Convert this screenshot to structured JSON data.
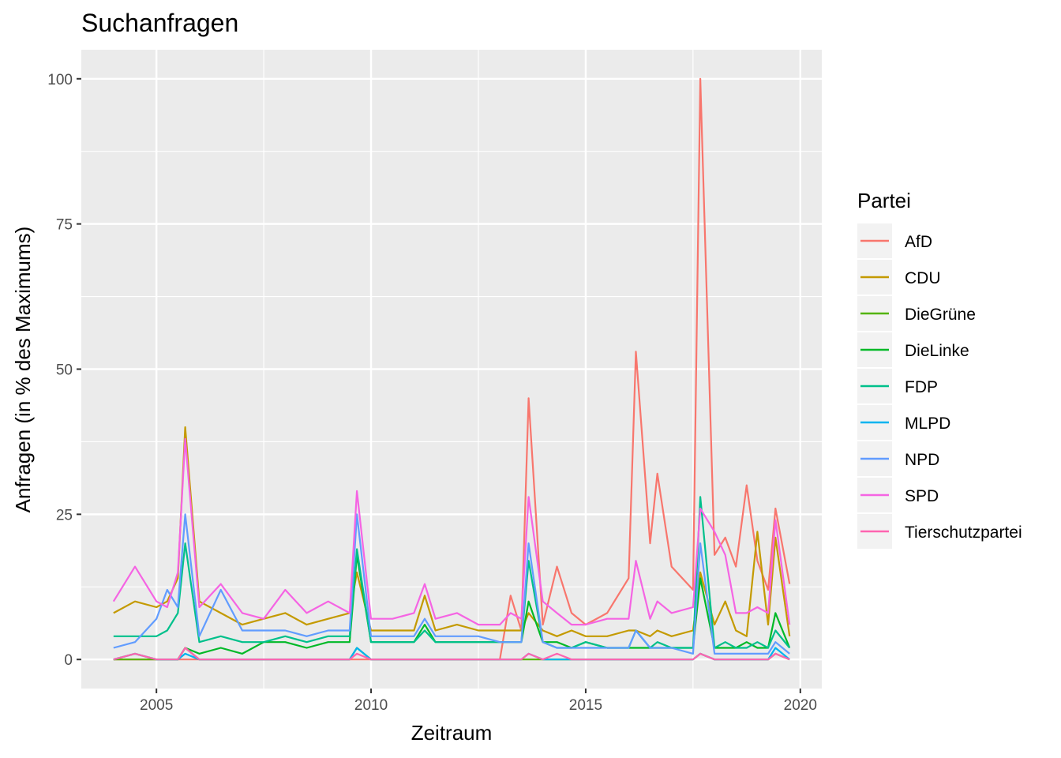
{
  "chart_data": {
    "type": "line",
    "title": "Suchanfragen",
    "xlabel": "Zeitraum",
    "ylabel": "Anfragen (in % des Maximums)",
    "xlim": [
      2003.25,
      2020.5
    ],
    "ylim": [
      -5,
      105
    ],
    "x_ticks": [
      2005,
      2010,
      2015,
      2020
    ],
    "x_tick_labels": [
      "2005",
      "2010",
      "2015",
      "2020"
    ],
    "y_ticks": [
      0,
      25,
      50,
      75,
      100
    ],
    "y_tick_labels": [
      "0",
      "25",
      "50",
      "75",
      "100"
    ],
    "grid": true,
    "legend": {
      "title": "Partei",
      "position": "right"
    },
    "x": [
      2004.0,
      2004.5,
      2005.0,
      2005.25,
      2005.5,
      2005.67,
      2006.0,
      2006.5,
      2007.0,
      2007.5,
      2008.0,
      2008.5,
      2009.0,
      2009.5,
      2009.67,
      2010.0,
      2010.5,
      2011.0,
      2011.25,
      2011.5,
      2012.0,
      2012.5,
      2013.0,
      2013.25,
      2013.5,
      2013.67,
      2014.0,
      2014.33,
      2014.67,
      2015.0,
      2015.5,
      2016.0,
      2016.17,
      2016.5,
      2016.67,
      2017.0,
      2017.5,
      2017.67,
      2018.0,
      2018.25,
      2018.5,
      2018.75,
      2019.0,
      2019.25,
      2019.42,
      2019.75
    ],
    "series": [
      {
        "name": "AfD",
        "color": "#F8766D",
        "values": [
          0,
          0,
          0,
          0,
          0,
          0,
          0,
          0,
          0,
          0,
          0,
          0,
          0,
          0,
          0,
          0,
          0,
          0,
          0,
          0,
          0,
          0,
          0,
          11,
          5,
          45,
          6,
          16,
          8,
          6,
          8,
          14,
          53,
          20,
          32,
          16,
          12,
          100,
          18,
          21,
          16,
          30,
          17,
          12,
          26,
          13
        ]
      },
      {
        "name": "CDU",
        "color": "#C49A00",
        "values": [
          8,
          10,
          9,
          10,
          14,
          40,
          10,
          8,
          6,
          7,
          8,
          6,
          7,
          8,
          15,
          5,
          5,
          5,
          11,
          5,
          6,
          5,
          5,
          5,
          5,
          8,
          5,
          4,
          5,
          4,
          4,
          5,
          5,
          4,
          5,
          4,
          5,
          15,
          6,
          10,
          5,
          4,
          22,
          6,
          21,
          4
        ]
      },
      {
        "name": "DieGrüne",
        "color": "#53B400",
        "values": [
          0,
          0,
          0,
          0,
          0,
          2,
          0,
          0,
          0,
          0,
          0,
          0,
          0,
          0,
          2,
          0,
          0,
          0,
          0,
          0,
          0,
          0,
          0,
          0,
          0,
          0,
          0,
          0,
          0,
          0,
          0,
          0,
          0,
          0,
          0,
          0,
          0,
          1,
          0,
          0,
          0,
          0,
          0,
          0,
          1,
          0
        ]
      },
      {
        "name": "DieLinke",
        "color": "#00B927",
        "values": [
          0,
          1,
          0,
          0,
          0,
          2,
          1,
          2,
          1,
          3,
          3,
          2,
          3,
          3,
          18,
          3,
          3,
          3,
          6,
          3,
          3,
          3,
          3,
          3,
          3,
          10,
          3,
          3,
          2,
          3,
          2,
          2,
          2,
          2,
          2,
          2,
          2,
          14,
          2,
          2,
          2,
          3,
          2,
          2,
          8,
          2
        ]
      },
      {
        "name": "FDP",
        "color": "#00C08B",
        "values": [
          4,
          4,
          4,
          5,
          8,
          20,
          3,
          4,
          3,
          3,
          4,
          3,
          4,
          4,
          19,
          3,
          3,
          3,
          5,
          3,
          3,
          3,
          3,
          3,
          3,
          17,
          3,
          2,
          2,
          3,
          2,
          2,
          5,
          2,
          3,
          2,
          2,
          28,
          2,
          3,
          2,
          2,
          3,
          2,
          5,
          2
        ]
      },
      {
        "name": "MLPD",
        "color": "#00B4EF",
        "values": [
          0,
          1,
          0,
          0,
          0,
          1,
          0,
          0,
          0,
          0,
          0,
          0,
          0,
          0,
          2,
          0,
          0,
          0,
          0,
          0,
          0,
          0,
          0,
          0,
          0,
          1,
          0,
          0,
          0,
          0,
          0,
          0,
          0,
          0,
          0,
          0,
          0,
          1,
          0,
          0,
          0,
          0,
          0,
          0,
          2,
          0
        ]
      },
      {
        "name": "NPD",
        "color": "#619CFF",
        "values": [
          2,
          3,
          7,
          12,
          9,
          25,
          4,
          12,
          5,
          5,
          5,
          4,
          5,
          5,
          25,
          4,
          4,
          4,
          7,
          4,
          4,
          4,
          3,
          3,
          3,
          20,
          3,
          2,
          2,
          2,
          2,
          2,
          5,
          2,
          2,
          2,
          1,
          20,
          1,
          1,
          1,
          1,
          1,
          1,
          3,
          1
        ]
      },
      {
        "name": "SPD",
        "color": "#F564E3",
        "values": [
          10,
          16,
          10,
          9,
          15,
          38,
          9,
          13,
          8,
          7,
          12,
          8,
          10,
          8,
          29,
          7,
          7,
          8,
          13,
          7,
          8,
          6,
          6,
          8,
          7,
          28,
          10,
          8,
          6,
          6,
          7,
          7,
          17,
          7,
          10,
          8,
          9,
          26,
          22,
          18,
          8,
          8,
          9,
          8,
          24,
          6
        ]
      },
      {
        "name": "Tierschutzpartei",
        "color": "#FF64B0",
        "values": [
          0,
          1,
          0,
          0,
          0,
          2,
          0,
          0,
          0,
          0,
          0,
          0,
          0,
          0,
          1,
          0,
          0,
          0,
          0,
          0,
          0,
          0,
          0,
          0,
          0,
          1,
          0,
          1,
          0,
          0,
          0,
          0,
          0,
          0,
          0,
          0,
          0,
          1,
          0,
          0,
          0,
          0,
          0,
          0,
          1,
          0
        ]
      }
    ]
  }
}
